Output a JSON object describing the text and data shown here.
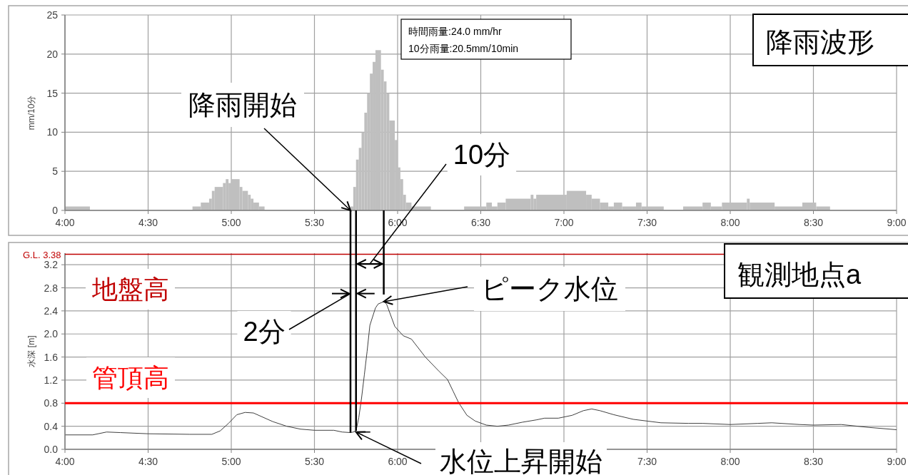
{
  "chart_data": [
    {
      "type": "histogram",
      "title": "降雨波形",
      "ylabel": "mm/10分",
      "color": "#bfbfbf",
      "grid": true,
      "bins": [
        4,
        4.15,
        4.7667,
        4.8167,
        4.8667,
        4.8833,
        4.9,
        4.95,
        4.9667,
        4.9833,
        5,
        5.05,
        5.0667,
        5.1,
        5.1167,
        5.1333,
        5.1667,
        5.2,
        5.7167,
        5.7333,
        5.75,
        5.7667,
        5.7833,
        5.8,
        5.8167,
        5.8333,
        5.85,
        5.8667,
        5.9,
        5.9167,
        5.9333,
        5.95,
        5.9833,
        6,
        6.0167,
        6.0333,
        6.05,
        6.0833,
        6.2,
        6.4,
        6.5333,
        6.5667,
        6.6,
        6.65,
        6.8,
        6.8167,
        6.8333,
        7.0167,
        7.1333,
        7.1667,
        7.2167,
        7.2667,
        7.3,
        7.35,
        7.4333,
        7.4667,
        7.6,
        7.7167,
        7.8333,
        7.8833,
        7.95,
        8.1,
        8.1167,
        8.2667,
        8.4333,
        8.5167,
        8.6
      ],
      "values": [
        0.5,
        0,
        0.5,
        1,
        1.5,
        2.5,
        3,
        3.5,
        4,
        3.5,
        4,
        3,
        2.5,
        2,
        1.5,
        1,
        0.5,
        0,
        0.5,
        3,
        6.5,
        8,
        10,
        12.5,
        15,
        17.5,
        19,
        20.5,
        18,
        16.5,
        15,
        11.5,
        9,
        5.5,
        4,
        2,
        1,
        0.5,
        0,
        0.5,
        1,
        0.5,
        1,
        1.5,
        2,
        1.5,
        2,
        2.5,
        2,
        1.5,
        1,
        0.5,
        1,
        0.5,
        1,
        0.5,
        0,
        0.5,
        1,
        0.5,
        1,
        1.5,
        1,
        0.5,
        1,
        0.5
      ],
      "xlim": [
        4,
        9
      ],
      "xticks": [
        {
          "value": 4,
          "label": "4:00"
        },
        {
          "value": 4.5,
          "label": "4:30"
        },
        {
          "value": 5,
          "label": "5:00"
        },
        {
          "value": 5.5,
          "label": "5:30"
        },
        {
          "value": 6,
          "label": "6:00"
        },
        {
          "value": 6.5,
          "label": "6:30"
        },
        {
          "value": 7,
          "label": "7:00"
        },
        {
          "value": 7.5,
          "label": "7:30"
        },
        {
          "value": 8,
          "label": "8:00"
        },
        {
          "value": 8.5,
          "label": "8:30"
        },
        {
          "value": 9,
          "label": "9:00"
        }
      ],
      "ylim": [
        0,
        25
      ],
      "yticks": [
        0,
        5,
        10,
        15,
        20,
        25
      ],
      "annotations": [
        "時間雨量:24.0 mm/hr",
        "10分雨量:20.5mm/10min",
        {
          "text": "降雨開始",
          "x": 5.7167,
          "y": 0
        },
        "10分"
      ]
    },
    {
      "type": "line",
      "title": "観測地点a",
      "ylabel": "水深 [m]",
      "color": "#404040",
      "grid": true,
      "x": [
        4,
        4.1667,
        4.25,
        4.3333,
        4.5,
        4.75,
        4.8833,
        4.9333,
        4.9833,
        5.0333,
        5.0833,
        5.1333,
        5.25,
        5.3333,
        5.4167,
        5.5,
        5.6167,
        5.6667,
        5.7167,
        5.7333,
        5.75,
        5.7667,
        5.7833,
        5.8,
        5.8167,
        5.8333,
        5.8667,
        5.8833,
        5.9167,
        5.9333,
        5.9833,
        6.0333,
        6.0833,
        6.1667,
        6.25,
        6.3,
        6.3333,
        6.3667,
        6.4167,
        6.4667,
        6.5333,
        6.6,
        6.6667,
        6.75,
        6.8333,
        6.8833,
        6.9667,
        7.05,
        7.1167,
        7.1667,
        7.2167,
        7.3,
        7.4167,
        7.5,
        7.5833,
        7.75,
        7.8333,
        8,
        8.1667,
        8.25,
        8.4167,
        8.5,
        8.6667,
        8.8333,
        9
      ],
      "xticks": [
        {
          "value": 4,
          "label": "4:00"
        },
        {
          "value": 4.5,
          "label": "4:30"
        },
        {
          "value": 5,
          "label": "5:00"
        },
        {
          "value": 5.5,
          "label": "5:30"
        },
        {
          "value": 6,
          "label": "6:00"
        },
        {
          "value": 6.5,
          "label": null
        },
        {
          "value": 7,
          "label": null
        },
        {
          "value": 7.5,
          "label": "7:30"
        },
        {
          "value": 8,
          "label": "8:00"
        },
        {
          "value": 8.5,
          "label": "8:30"
        },
        {
          "value": 9,
          "label": "9:00"
        }
      ],
      "values": [
        0.25,
        0.25,
        0.3,
        0.29,
        0.27,
        0.26,
        0.26,
        0.32,
        0.45,
        0.6,
        0.64,
        0.63,
        0.48,
        0.4,
        0.35,
        0.33,
        0.33,
        0.3,
        0.29,
        0.3,
        0.32,
        0.55,
        0.89,
        1.29,
        1.7,
        2.15,
        2.45,
        2.52,
        2.56,
        2.52,
        2.13,
        1.97,
        1.91,
        1.6,
        1.35,
        1.21,
        1.01,
        0.81,
        0.59,
        0.49,
        0.42,
        0.4,
        0.42,
        0.47,
        0.51,
        0.54,
        0.54,
        0.59,
        0.67,
        0.7,
        0.67,
        0.6,
        0.52,
        0.49,
        0.46,
        0.45,
        0.45,
        0.43,
        0.45,
        0.46,
        0.43,
        0.42,
        0.43,
        0.38,
        0.34
      ],
      "xlim": [
        4,
        9
      ],
      "ylim": [
        0,
        3.4
      ],
      "yticks": [
        {
          "value": 0,
          "label": "0.0"
        },
        {
          "value": 0.4,
          "label": "0.4"
        },
        {
          "value": 0.8,
          "label": "0.8"
        },
        {
          "value": 1.2,
          "label": "1.2"
        },
        {
          "value": 1.6,
          "label": "1.6"
        },
        {
          "value": 2,
          "label": "2.0"
        },
        {
          "value": 2.4,
          "label": "2.4"
        },
        {
          "value": 2.8,
          "label": "2.8"
        },
        {
          "value": 3.2,
          "label": "3.2"
        }
      ],
      "ref_lines": [
        {
          "axis": "y",
          "value": 3.38,
          "label": "G.L. 3.38",
          "color": "#c00000"
        },
        {
          "axis": "y",
          "value": 0.8,
          "color": "#ff0000"
        },
        {
          "axis": "x",
          "value": 5.7167,
          "color": "#000000"
        },
        {
          "axis": "x",
          "value": 5.75,
          "color": "#000000"
        },
        {
          "axis": "x",
          "value": 5.9167,
          "color": "#000000"
        }
      ],
      "annotations": [
        "地盤高",
        "管頂高",
        {
          "text": "ピーク水位",
          "x": 5.9167,
          "y": 2.56
        },
        {
          "text": "2分",
          "x": 5.7167,
          "y": 2.7
        },
        {
          "text": "水位上昇開始",
          "x": 5.75,
          "y": 0.3
        }
      ]
    }
  ]
}
